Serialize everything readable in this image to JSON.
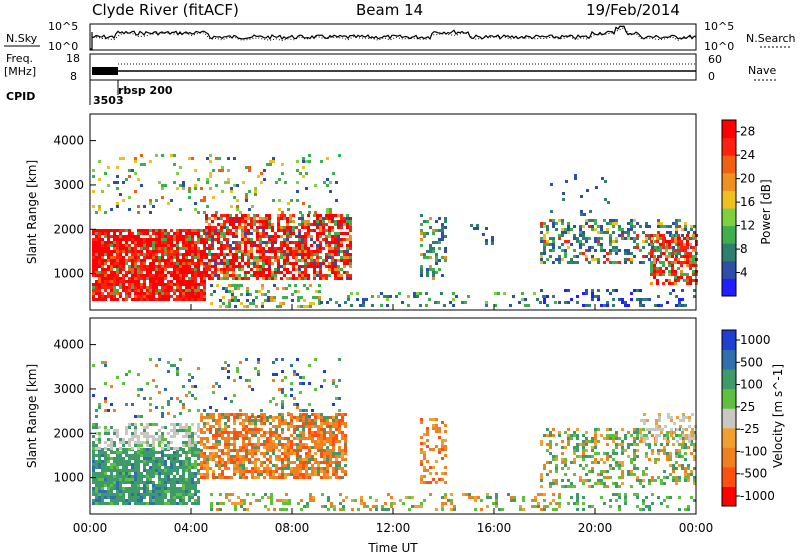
{
  "header": {
    "station": "Clyde River (fitACF)",
    "beam": "Beam 14",
    "date": "19/Feb/2014"
  },
  "panel_labels": {
    "nsky": "N.Sky",
    "nsearch": "N.Search",
    "freq": "Freq.",
    "freq_unit": "[MHz]",
    "nave": "Nave",
    "cpid": "CPID",
    "cpid_value_1": "3503",
    "cpid_value_2": "rbsp 200"
  },
  "colors": {
    "power_scale": [
      "#1f1fff",
      "#2e4fa8",
      "#2f7f6f",
      "#3fae4f",
      "#7fd040",
      "#f0c020",
      "#f09020",
      "#f06010",
      "#ff2010",
      "#ff0000"
    ],
    "velocity_scale": [
      "#ff0000",
      "#ff5010",
      "#f08020",
      "#f0a030",
      "#c8c8c0",
      "#5fc040",
      "#3f9a6a",
      "#2f6fae",
      "#1f3fd0"
    ]
  },
  "chart_data": [
    {
      "type": "line",
      "name": "noise-panel",
      "ylabel_left": "N.Sky",
      "ylabel_right": "N.Search",
      "yticks_left": [
        "10^5",
        "10^0"
      ],
      "yticks_right": [
        "10^5",
        "10^0"
      ],
      "xlim": [
        "00:00",
        "24:00"
      ]
    },
    {
      "type": "line",
      "name": "freq-nave-panel",
      "ylabel_left": "Freq. [MHz]",
      "ylabel_right": "Nave",
      "yticks_left": [
        18,
        8
      ],
      "yticks_right": [
        60,
        0
      ],
      "xlim": [
        "00:00",
        "24:00"
      ]
    },
    {
      "type": "heatmap",
      "name": "power-panel",
      "ylabel": "Slant Range [km]",
      "yticks": [
        1000,
        2000,
        3000,
        4000
      ],
      "ylim": [
        180,
        4600
      ],
      "colorbar_label": "Power [dB]",
      "colorbar_ticks": [
        4,
        8,
        12,
        16,
        20,
        24,
        28
      ],
      "colorbar_range": [
        0,
        30
      ]
    },
    {
      "type": "heatmap",
      "name": "velocity-panel",
      "ylabel": "Slant Range [km]",
      "yticks": [
        1000,
        2000,
        3000,
        4000
      ],
      "ylim": [
        180,
        4600
      ],
      "colorbar_label": "Velocity [m s^-1]",
      "colorbar_ticks": [
        1000,
        500,
        100,
        25,
        -25,
        -100,
        -500,
        -1000
      ]
    }
  ],
  "xaxis": {
    "ticks": [
      "00:00",
      "04:00",
      "08:00",
      "12:00",
      "16:00",
      "20:00",
      "00:00"
    ],
    "label": "Time UT"
  }
}
